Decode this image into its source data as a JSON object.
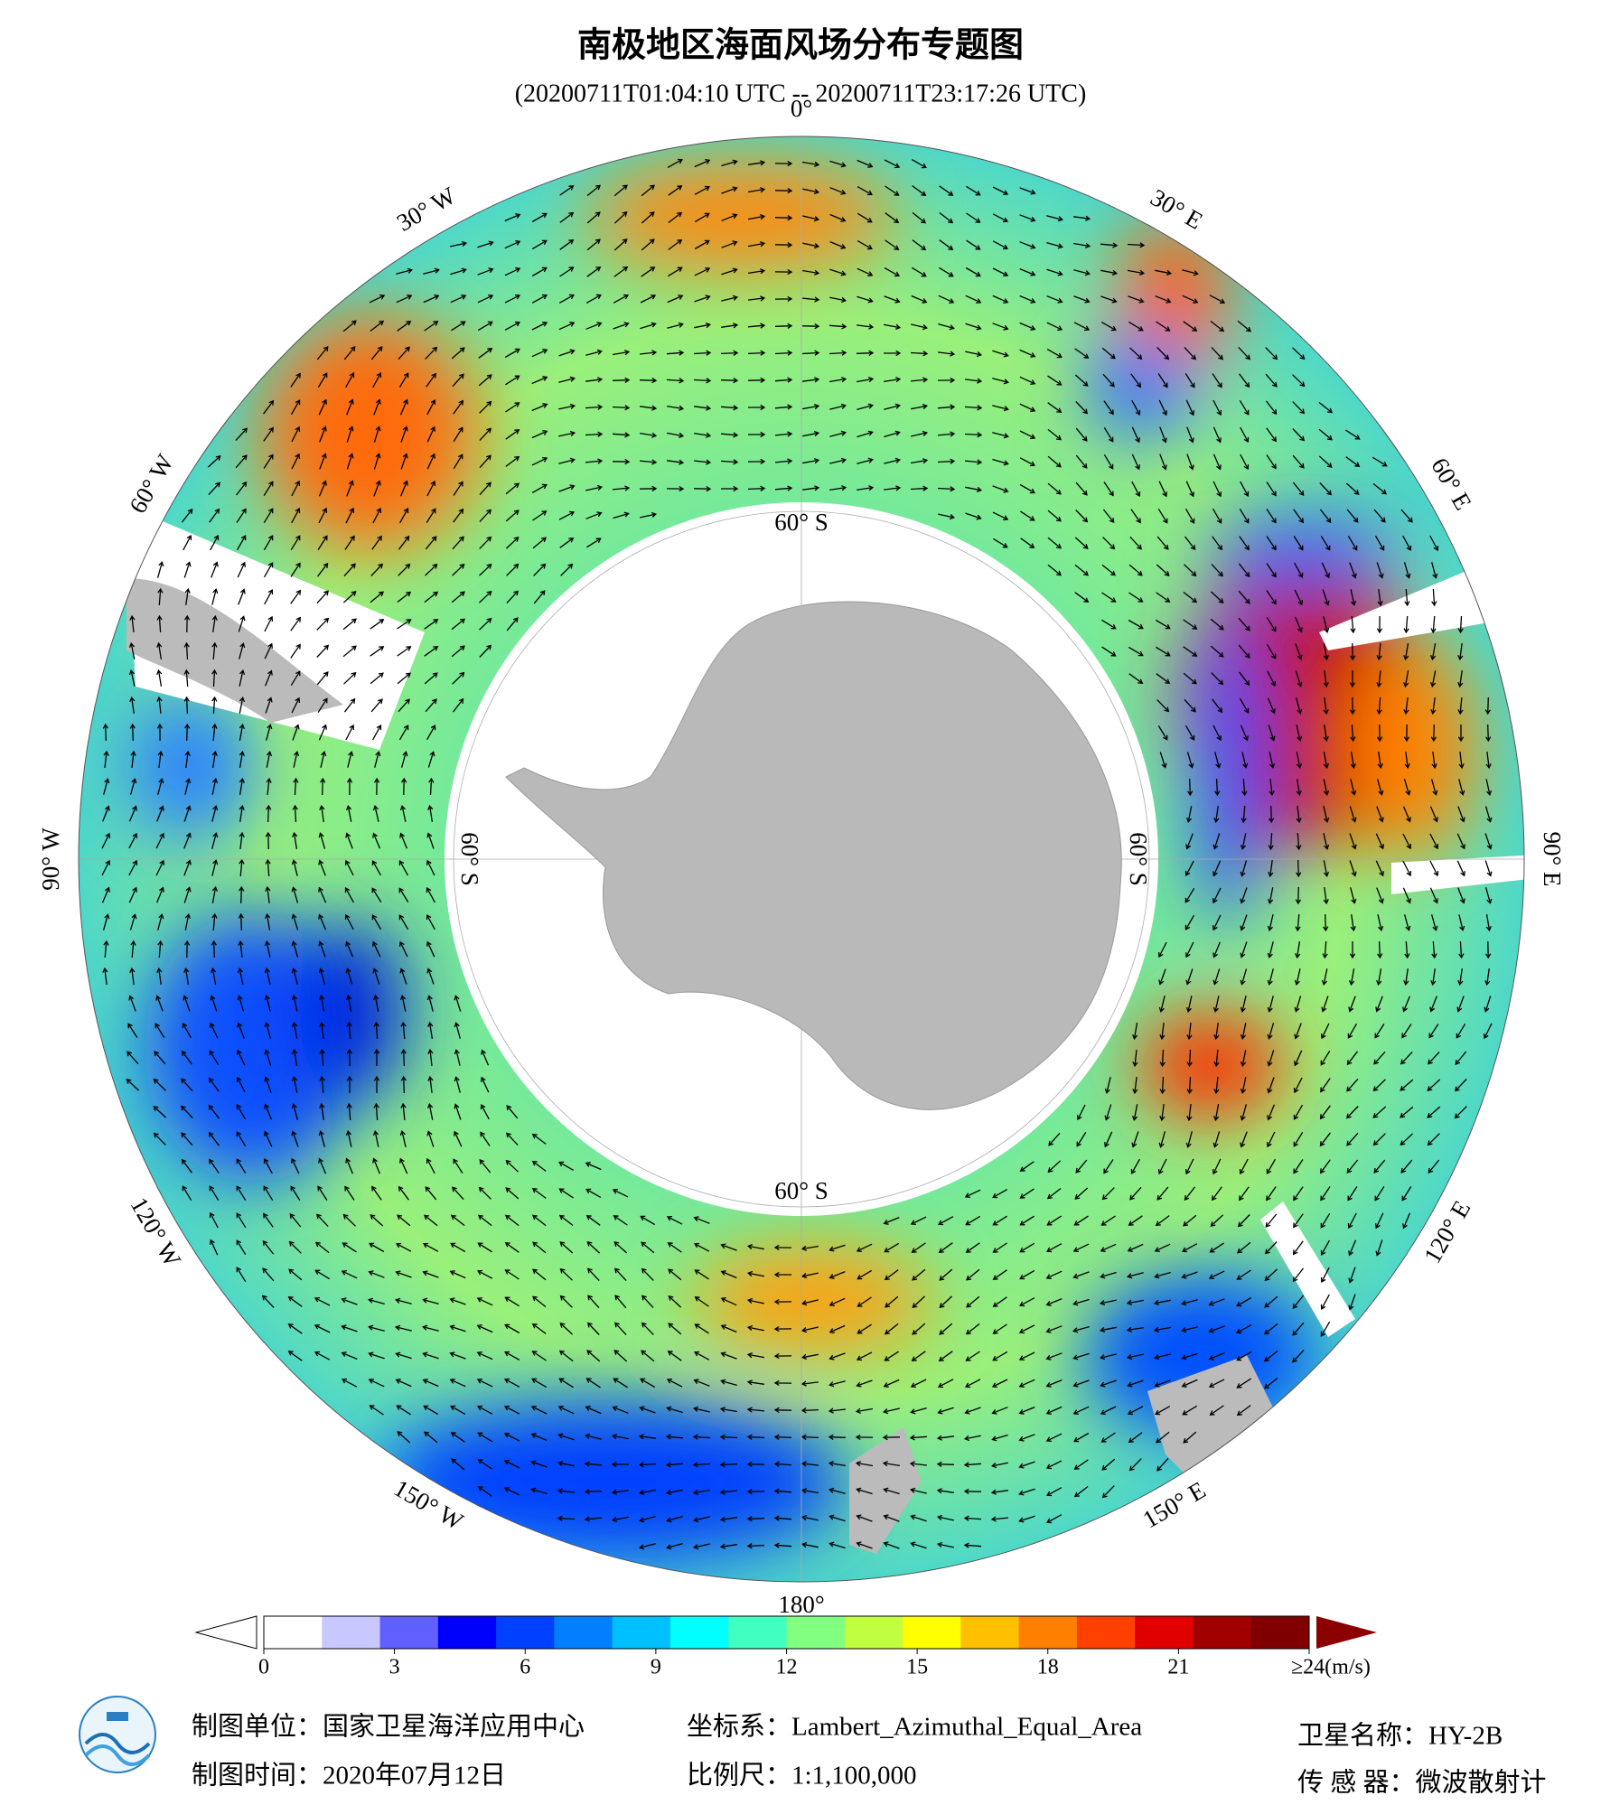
{
  "title": "南极地区海面风场分布专题图",
  "subtitle": "(20200711T01:04:10 UTC -- 20200711T23:17:26 UTC)",
  "map": {
    "longitude_labels": [
      "0°",
      "30° E",
      "60° E",
      "90° E",
      "120° E",
      "150° E",
      "180°",
      "150° W",
      "120° W",
      "90° W",
      "60° W",
      "30° W"
    ],
    "latitude_labels": [
      "60° S",
      "60° S",
      "60° S",
      "60° S"
    ]
  },
  "colorbar": {
    "lim": [
      0,
      24
    ],
    "ticks": [
      0,
      3,
      6,
      9,
      12,
      15,
      18,
      21,
      {
        "value": 24,
        "label": "≥24(m/s)"
      }
    ],
    "colors": [
      "#ffffff",
      "#c8c8ff",
      "#6060ff",
      "#0000ff",
      "#0040ff",
      "#0080ff",
      "#00c0ff",
      "#00ffff",
      "#40ffc0",
      "#80ff80",
      "#c0ff40",
      "#ffff00",
      "#ffc000",
      "#ff8000",
      "#ff4000",
      "#e00000",
      "#a00000",
      "#800000"
    ],
    "over_color": "#8b0000"
  },
  "footer": {
    "producer": "制图单位：国家卫星海洋应用中心",
    "date": "制图时间：2020年07月12日",
    "projection": "坐标系：Lambert_Azimuthal_Equal_Area",
    "scale": "比例尺：1:1,100,000",
    "satellite": "卫星名称：HY-2B",
    "sensor": "传 感 器：微波散射计"
  }
}
